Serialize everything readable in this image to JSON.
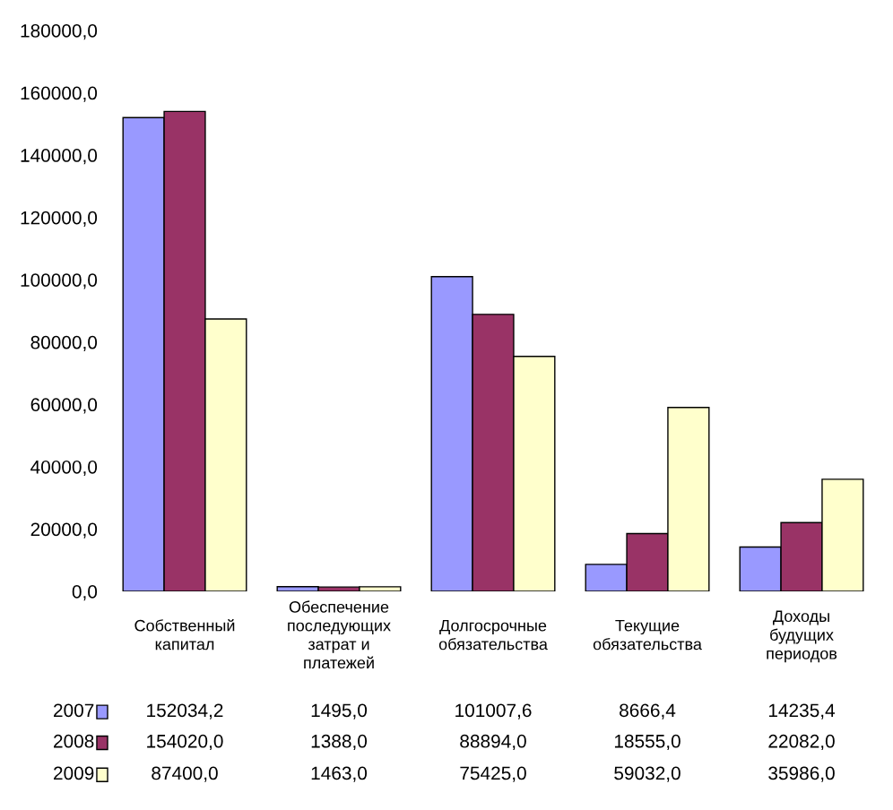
{
  "chart_data": {
    "type": "bar",
    "categories": [
      "Собственный\nкапитал",
      "Обеспечение\nпоследующих\nзатрат и\nплатежей",
      "Долгосрочные\nобязательства",
      "Текущие\nобязательства",
      "Доходы\nбудущих\nпериодов"
    ],
    "series": [
      {
        "name": "2007",
        "color": "#9999ff",
        "values": [
          152034.2,
          1495.0,
          101007.6,
          8666.4,
          14235.4
        ],
        "value_labels": [
          "152034,2",
          "1495,0",
          "101007,6",
          "8666,4",
          "14235,4"
        ]
      },
      {
        "name": "2008",
        "color": "#993366",
        "values": [
          154020.0,
          1388.0,
          88894.0,
          18555.0,
          22082.0
        ],
        "value_labels": [
          "154020,0",
          "1388,0",
          "88894,0",
          "18555,0",
          "22082,0"
        ]
      },
      {
        "name": "2009",
        "color": "#ffffcc",
        "values": [
          87400.0,
          1463.0,
          75425.0,
          59032.0,
          35986.0
        ],
        "value_labels": [
          "87400,0",
          "1463,0",
          "75425,0",
          "59032,0",
          "35986,0"
        ]
      }
    ],
    "ylim": [
      0,
      180000
    ],
    "yticks": [
      {
        "value": 0,
        "label": "0,0"
      },
      {
        "value": 20000,
        "label": "20000,0"
      },
      {
        "value": 40000,
        "label": "40000,0"
      },
      {
        "value": 60000,
        "label": "60000,0"
      },
      {
        "value": 80000,
        "label": "80000,0"
      },
      {
        "value": 100000,
        "label": "100000,0"
      },
      {
        "value": 120000,
        "label": "120000,0"
      },
      {
        "value": 140000,
        "label": "140000,0"
      },
      {
        "value": 160000,
        "label": "160000,0"
      },
      {
        "value": 180000,
        "label": "180000,0"
      }
    ],
    "grid": false,
    "legend": "bottom left"
  }
}
